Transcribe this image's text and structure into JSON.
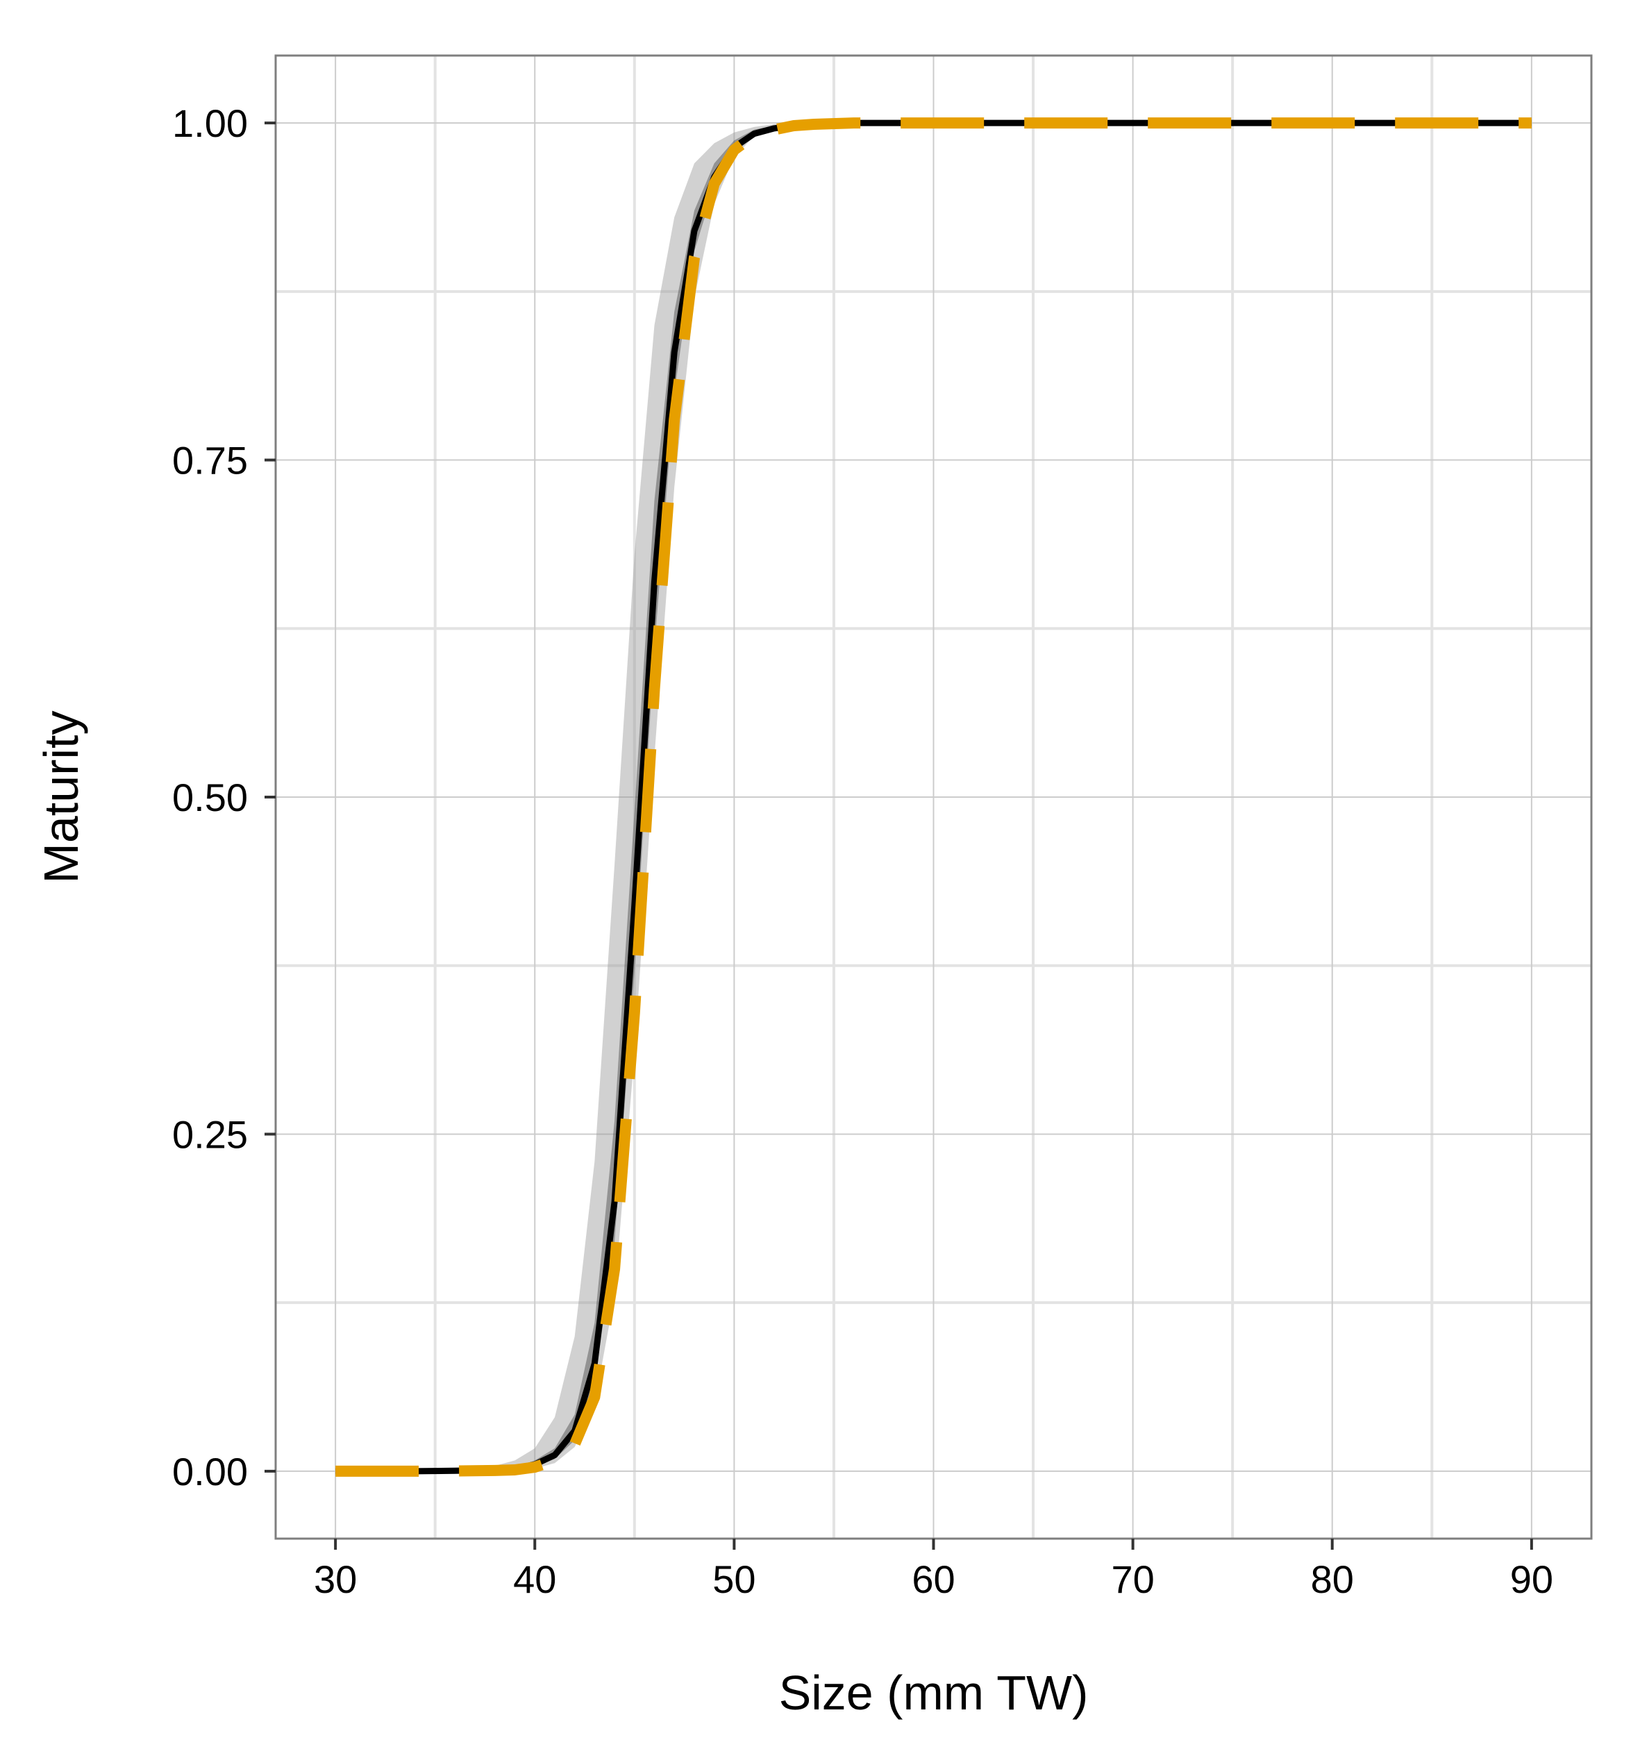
{
  "chart_data": {
    "type": "line",
    "xlabel": "Size (mm TW)",
    "ylabel": "Maturity",
    "xlim": [
      27,
      93
    ],
    "ylim": [
      -0.05,
      1.05
    ],
    "x_ticks": [
      30,
      40,
      50,
      60,
      70,
      80,
      90
    ],
    "x_tick_labels": [
      "30",
      "40",
      "50",
      "60",
      "70",
      "80",
      "90"
    ],
    "y_ticks": [
      0,
      0.25,
      0.5,
      0.75,
      1
    ],
    "y_tick_labels": [
      "0.00",
      "0.25",
      "0.50",
      "0.75",
      "1.00"
    ],
    "grid": true,
    "x": [
      30,
      32,
      34,
      36,
      38,
      39,
      40,
      41,
      42,
      43,
      44,
      45,
      46,
      47,
      48,
      49,
      50,
      51,
      52,
      53,
      54,
      56,
      58,
      60,
      70,
      80,
      90
    ],
    "series": [
      {
        "style": "solid",
        "color": "#000000",
        "values": [
          0,
          0,
          0,
          0.0003,
          0.001,
          0.002,
          0.005,
          0.012,
          0.03,
          0.08,
          0.2,
          0.42,
          0.66,
          0.83,
          0.92,
          0.96,
          0.982,
          0.992,
          0.996,
          0.998,
          0.999,
          1,
          1,
          1,
          1,
          1,
          1
        ]
      },
      {
        "style": "dashed",
        "color": "#E69F00",
        "values": [
          0,
          0,
          0,
          0.0002,
          0.0005,
          0.001,
          0.003,
          0.008,
          0.02,
          0.055,
          0.15,
          0.34,
          0.58,
          0.78,
          0.9,
          0.955,
          0.98,
          0.991,
          0.995,
          0.998,
          0.999,
          1,
          1,
          1,
          1,
          1,
          1
        ]
      }
    ],
    "bands": [
      {
        "color": "#999999",
        "opacity": 0.45,
        "lower": [
          0,
          0,
          0,
          0,
          0,
          0.0005,
          0.002,
          0.006,
          0.018,
          0.05,
          0.13,
          0.31,
          0.53,
          0.73,
          0.87,
          0.94,
          0.975,
          0.99,
          0.995,
          0.998,
          0.999,
          1,
          1,
          1,
          1,
          1,
          1
        ],
        "upper": [
          0,
          0,
          0,
          0.001,
          0.004,
          0.008,
          0.017,
          0.04,
          0.1,
          0.23,
          0.45,
          0.68,
          0.85,
          0.93,
          0.97,
          0.985,
          0.993,
          0.997,
          0.999,
          1,
          1,
          1,
          1,
          1,
          1,
          1,
          1
        ]
      },
      {
        "color": "#555555",
        "opacity": 0.5,
        "lower": [
          0,
          0,
          0,
          0.0001,
          0.0006,
          0.0014,
          0.0035,
          0.009,
          0.023,
          0.065,
          0.17,
          0.37,
          0.61,
          0.8,
          0.905,
          0.953,
          0.978,
          0.99,
          0.995,
          0.998,
          0.999,
          1,
          1,
          1,
          1,
          1,
          1
        ],
        "upper": [
          0,
          0,
          0,
          0.0006,
          0.0018,
          0.003,
          0.008,
          0.017,
          0.042,
          0.11,
          0.26,
          0.49,
          0.72,
          0.86,
          0.935,
          0.97,
          0.987,
          0.995,
          0.998,
          0.999,
          1,
          1,
          1,
          1,
          1,
          1,
          1
        ]
      }
    ]
  }
}
